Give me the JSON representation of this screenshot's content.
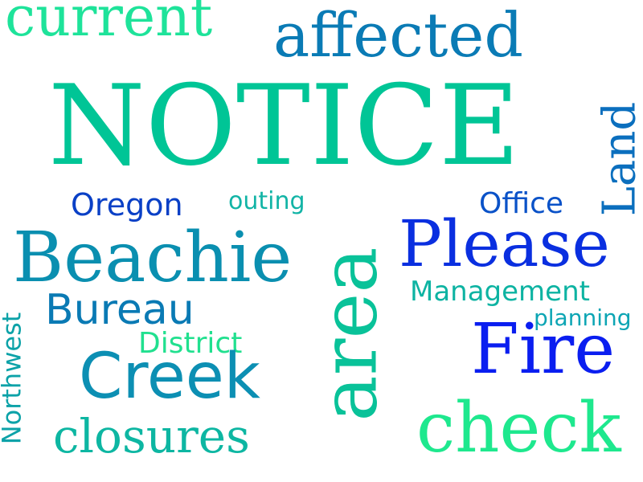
{
  "words": {
    "current": {
      "text": "current",
      "color": "#1ee39a"
    },
    "affected": {
      "text": "affected",
      "color": "#0a7bb5"
    },
    "notice": {
      "text": "NOTICE",
      "color": "#00c596"
    },
    "land": {
      "text": "Land",
      "color": "#0b6fbe"
    },
    "oregon": {
      "text": "Oregon",
      "color": "#0a40c6"
    },
    "outing": {
      "text": "outing",
      "color": "#12b4a6"
    },
    "office": {
      "text": "Office",
      "color": "#0a52c8"
    },
    "please": {
      "text": "Please",
      "color": "#0a2fe0"
    },
    "beachie": {
      "text": "Beachie",
      "color": "#0a8fb0"
    },
    "area": {
      "text": "area",
      "color": "#09c299"
    },
    "management": {
      "text": "Management",
      "color": "#0db3a2"
    },
    "bureau": {
      "text": "Bureau",
      "color": "#0a7ab4"
    },
    "planning": {
      "text": "planning",
      "color": "#0ca5b4"
    },
    "northwest": {
      "text": "Northwest",
      "color": "#0ca2a8"
    },
    "district": {
      "text": "District",
      "color": "#21e08f"
    },
    "fire": {
      "text": "Fire",
      "color": "#0a1ef0"
    },
    "creek": {
      "text": "Creek",
      "color": "#0c8fb3"
    },
    "closures": {
      "text": "closures",
      "color": "#0db6a2"
    },
    "check": {
      "text": "check",
      "color": "#1ee88e"
    }
  }
}
